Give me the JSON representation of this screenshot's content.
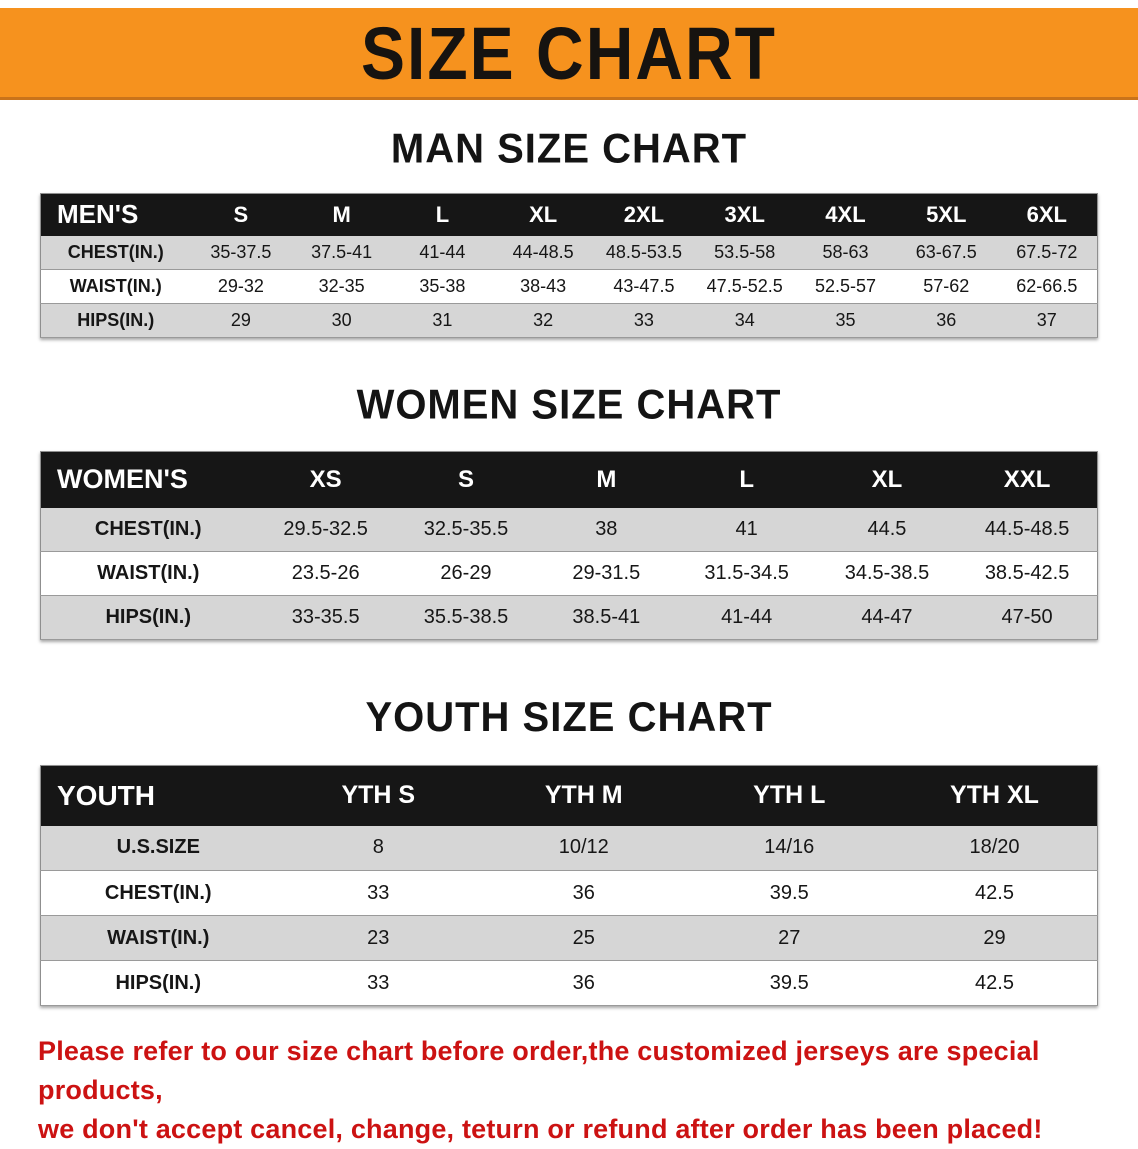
{
  "banner": {
    "title": "SIZE CHART",
    "bg_color": "#f6921e"
  },
  "colors": {
    "table_header_bg": "#161616",
    "row_alt": "#d6d6d6",
    "footer_text": "#cc1212"
  },
  "sections": [
    {
      "heading": "MAN SIZE CHART",
      "table": {
        "header": [
          "MEN'S",
          "S",
          "M",
          "L",
          "XL",
          "2XL",
          "3XL",
          "4XL",
          "5XL",
          "6XL"
        ],
        "rows": [
          [
            "CHEST(IN.)",
            "35-37.5",
            "37.5-41",
            "41-44",
            "44-48.5",
            "48.5-53.5",
            "53.5-58",
            "58-63",
            "63-67.5",
            "67.5-72"
          ],
          [
            "WAIST(IN.)",
            "29-32",
            "32-35",
            "35-38",
            "38-43",
            "43-47.5",
            "47.5-52.5",
            "52.5-57",
            "57-62",
            "62-66.5"
          ],
          [
            "HIPS(IN.)",
            "29",
            "30",
            "31",
            "32",
            "33",
            "34",
            "35",
            "36",
            "37"
          ]
        ]
      }
    },
    {
      "heading": "WOMEN SIZE CHART",
      "table": {
        "header": [
          "WOMEN'S",
          "XS",
          "S",
          "M",
          "L",
          "XL",
          "XXL"
        ],
        "rows": [
          [
            "CHEST(IN.)",
            "29.5-32.5",
            "32.5-35.5",
            "38",
            "41",
            "44.5",
            "44.5-48.5"
          ],
          [
            "WAIST(IN.)",
            "23.5-26",
            "26-29",
            "29-31.5",
            "31.5-34.5",
            "34.5-38.5",
            "38.5-42.5"
          ],
          [
            "HIPS(IN.)",
            "33-35.5",
            "35.5-38.5",
            "38.5-41",
            "41-44",
            "44-47",
            "47-50"
          ]
        ]
      }
    },
    {
      "heading": "YOUTH SIZE CHART",
      "table": {
        "header": [
          "YOUTH",
          "YTH S",
          "YTH M",
          "YTH L",
          "YTH XL"
        ],
        "rows": [
          [
            "U.S.SIZE",
            "8",
            "10/12",
            "14/16",
            "18/20"
          ],
          [
            "CHEST(IN.)",
            "33",
            "36",
            "39.5",
            "42.5"
          ],
          [
            "WAIST(IN.)",
            "23",
            "25",
            "27",
            "29"
          ],
          [
            "HIPS(IN.)",
            "33",
            "36",
            "39.5",
            "42.5"
          ]
        ]
      }
    }
  ],
  "footer": {
    "line1": "Please refer to our size chart before order,the customized jerseys are special products,",
    "line2": "we don't accept cancel, change, teturn or refund after order has been placed!"
  }
}
